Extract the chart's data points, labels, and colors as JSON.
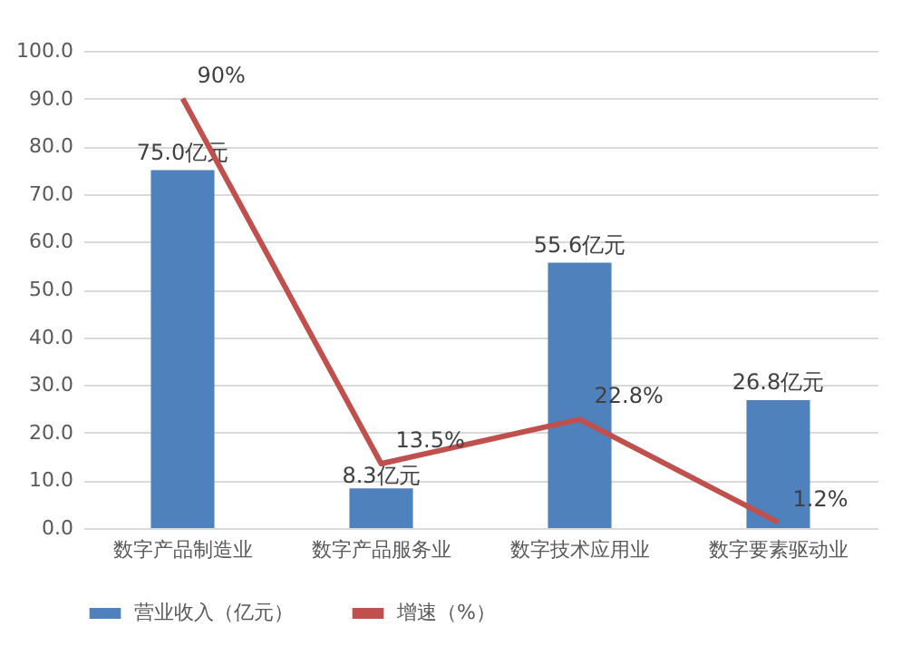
{
  "chart_data": {
    "type": "bar",
    "categories": [
      "数字产品制造业",
      "数字产品服务业",
      "数字技术应用业",
      "数字要素驱动业"
    ],
    "series": [
      {
        "name": "营业收入（亿元）",
        "color": "#4f81bd",
        "values": [
          75.0,
          8.3,
          55.6,
          26.8
        ],
        "value_labels": [
          "75.0亿元",
          "8.3亿元",
          "55.6亿元",
          "26.8亿元"
        ]
      },
      {
        "name": "增速（%）",
        "type": "line",
        "color": "#c0504d",
        "values": [
          90,
          13.5,
          22.8,
          1.2
        ],
        "value_labels": [
          "90%",
          "13.5%",
          "22.8%",
          "1.2%"
        ]
      }
    ],
    "ylim": [
      0,
      100
    ],
    "yticks": [
      {
        "value": 0,
        "label": "0.0"
      },
      {
        "value": 10,
        "label": "10.0"
      },
      {
        "value": 20,
        "label": "20.0"
      },
      {
        "value": 30,
        "label": "30.0"
      },
      {
        "value": 40,
        "label": "40.0"
      },
      {
        "value": 50,
        "label": "50.0"
      },
      {
        "value": 60,
        "label": "60.0"
      },
      {
        "value": 70,
        "label": "70.0"
      },
      {
        "value": 80,
        "label": "80.0"
      },
      {
        "value": 90,
        "label": "90.0"
      },
      {
        "value": 100,
        "label": "100.0"
      }
    ],
    "grid": "y",
    "legend": "bottom",
    "marker": "none",
    "line_style": "solid"
  }
}
